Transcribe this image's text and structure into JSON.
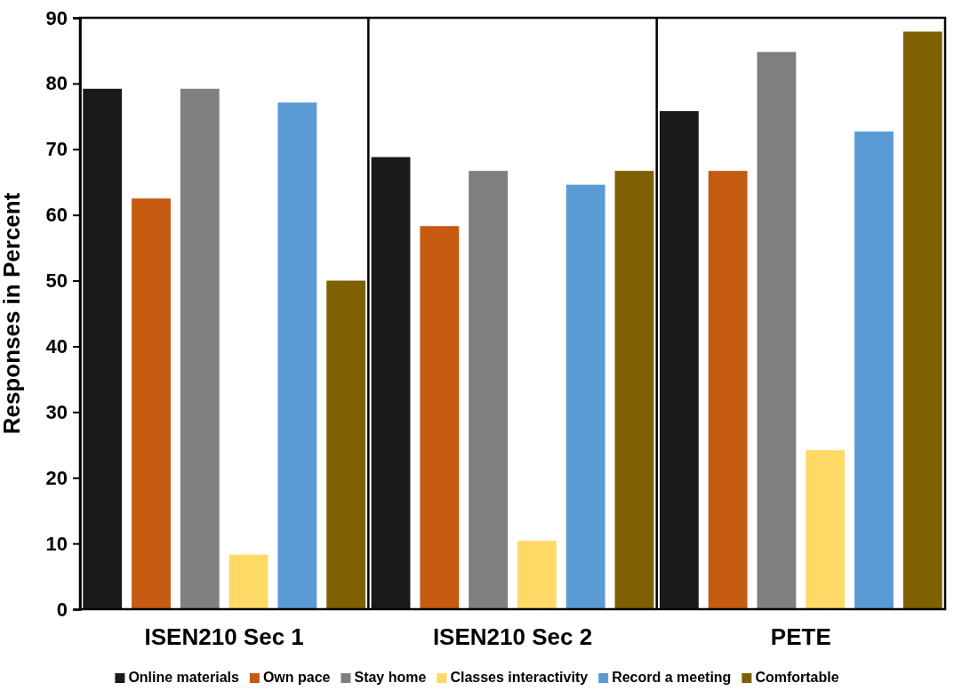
{
  "chart_data": {
    "type": "bar",
    "ylabel": "Responses in Percent",
    "categories": [
      "ISEN210 Sec 1",
      "ISEN210 Sec 2",
      "PETE"
    ],
    "series": [
      {
        "name": "Online materials",
        "color": "#1a1a1a",
        "values": [
          79.2,
          68.8,
          75.8
        ]
      },
      {
        "name": "Own pace",
        "color": "#c55a11",
        "values": [
          62.5,
          58.3,
          66.7
        ]
      },
      {
        "name": "Stay home",
        "color": "#7f7f7f",
        "values": [
          79.2,
          66.7,
          84.8
        ]
      },
      {
        "name": "Classes interactivity",
        "color": "#ffd966",
        "values": [
          8.3,
          10.4,
          24.2
        ]
      },
      {
        "name": "Record a meeting",
        "color": "#5b9bd5",
        "values": [
          77.1,
          64.6,
          72.7
        ]
      },
      {
        "name": "Comfortable",
        "color": "#7f6000",
        "values": [
          50,
          66.7,
          87.9
        ]
      }
    ],
    "ylim": [
      0,
      90
    ],
    "yticks": [
      0,
      10,
      20,
      30,
      40,
      50,
      60,
      70,
      80,
      90
    ],
    "legend": "bottom"
  }
}
